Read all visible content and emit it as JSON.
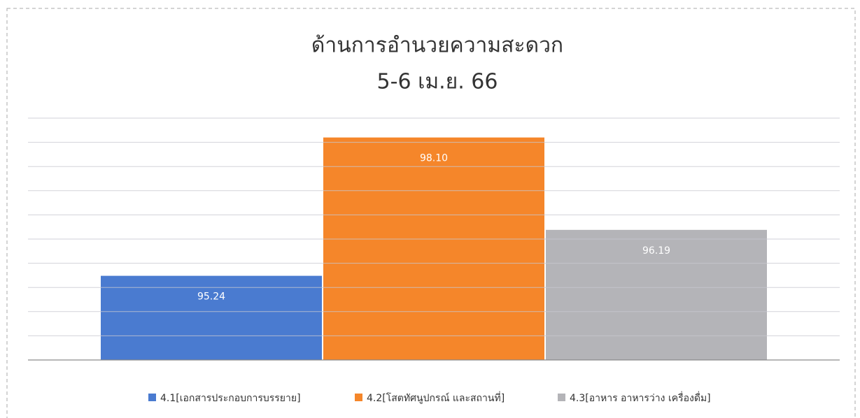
{
  "chart_data": {
    "type": "bar",
    "title": "ด้านการอำนวยความสะดวก",
    "subtitle": "5-6 เม.ย. 66",
    "categories": [
      null
    ],
    "series": [
      {
        "name": "4.1[เอกสารประกอบการบรรยาย]",
        "color": "#4a7bd0",
        "values": [
          95.24
        ],
        "value_labels": [
          "95.24"
        ]
      },
      {
        "name": "4.2[โสตทัศนูปกรณ์ และสถานที่]",
        "color": "#f5862a",
        "values": [
          98.1
        ],
        "value_labels": [
          "98.10"
        ]
      },
      {
        "name": "4.3[อาหาร อาหารว่าง เครื่องดื่ม]",
        "color": "#b4b4b8",
        "values": [
          96.19
        ],
        "value_labels": [
          "96.19"
        ]
      }
    ],
    "ylim": [
      93.5,
      98.5
    ],
    "yticks": [
      93.5,
      94,
      94.5,
      95,
      95.5,
      96,
      96.5,
      97,
      97.5,
      98,
      98.5
    ],
    "grid": true,
    "legend": "bottom"
  }
}
